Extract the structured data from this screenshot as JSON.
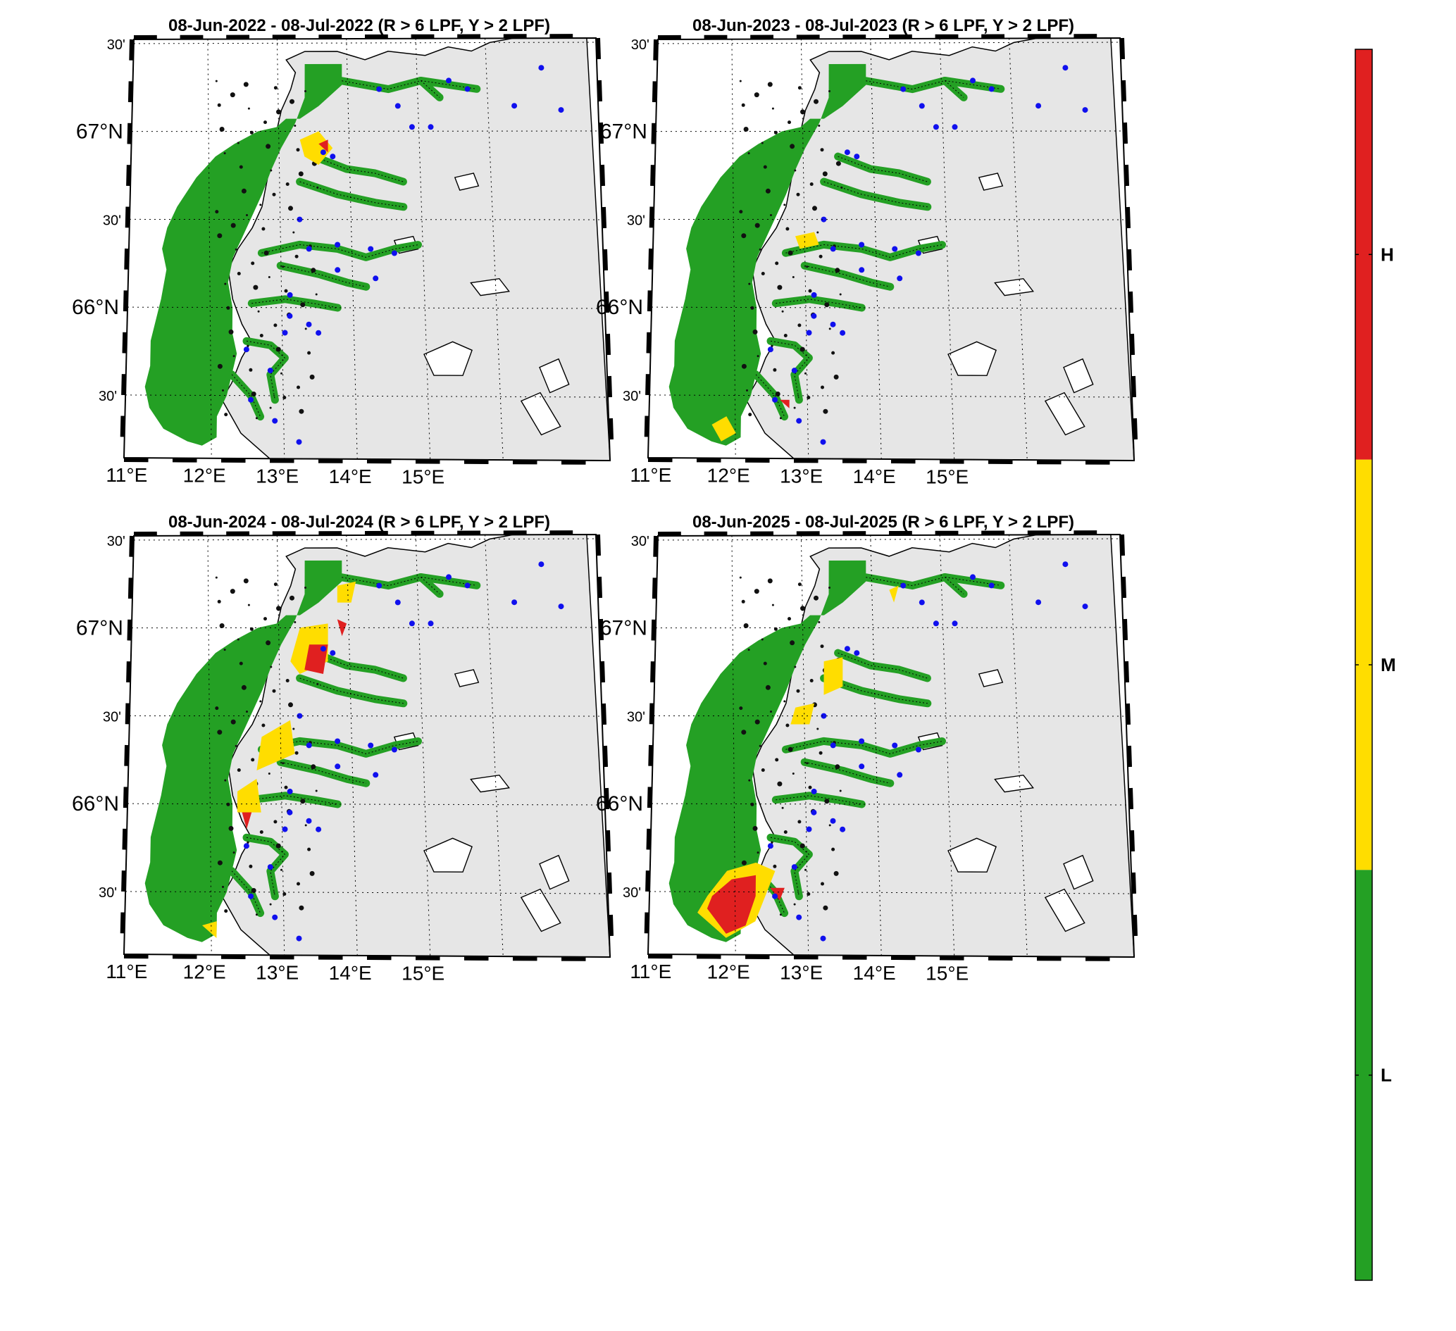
{
  "figure": {
    "colorbar": {
      "colors": {
        "H": "#e02020",
        "M": "#ffdd00",
        "L": "#24a024"
      },
      "labels": [
        "H",
        "M",
        "L"
      ]
    },
    "lon_labels": [
      "11°E",
      "12°E",
      "13°E",
      "14°E",
      "15°E"
    ],
    "lat_labels": {
      "top": "30'",
      "n67": "67°N",
      "upper_mid": "30'",
      "n66": "66°N",
      "lower": "30'"
    },
    "land_color": "#e6e6e6",
    "station_color": "#1010ee",
    "panels": [
      {
        "title": "08-Jun-2022  - 08-Jul-2022  (R > 6 LPF, Y > 2 LPF)"
      },
      {
        "title": "08-Jun-2023  - 08-Jul-2023  (R > 6 LPF, Y > 2 LPF)"
      },
      {
        "title": "08-Jun-2024  - 08-Jul-2024  (R > 6 LPF, Y > 2 LPF)"
      },
      {
        "title": "08-Jun-2025  - 08-Jul-2025  (R > 6 LPF, Y > 2 LPF)"
      }
    ]
  }
}
